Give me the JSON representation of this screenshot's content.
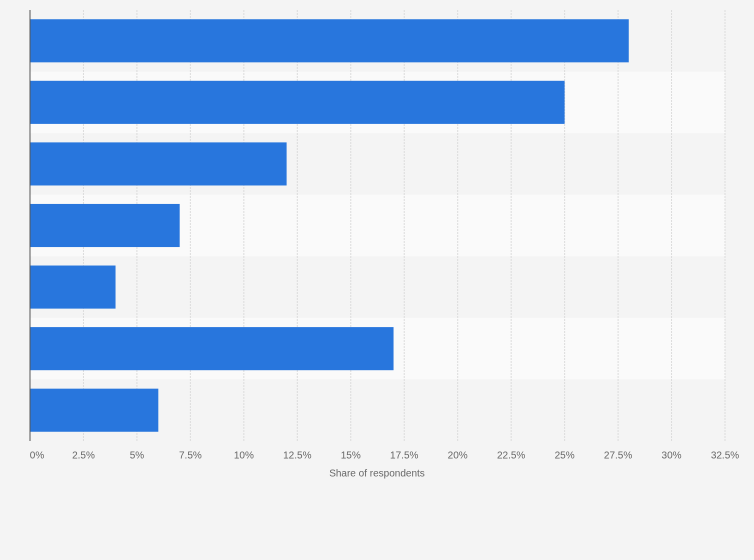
{
  "chart_data": {
    "type": "bar",
    "orientation": "horizontal",
    "x_label": "Share of respondents",
    "categories": [
      null,
      null,
      null,
      null,
      null,
      null,
      null
    ],
    "values": [
      28,
      25,
      12,
      7,
      4,
      17,
      6
    ],
    "color": "#2876dd",
    "xlim": [
      0,
      32.5
    ],
    "xticks": [
      {
        "value": 0,
        "label": "0%"
      },
      {
        "value": 2.5,
        "label": "2.5%"
      },
      {
        "value": 5,
        "label": "5%"
      },
      {
        "value": 7.5,
        "label": "7.5%"
      },
      {
        "value": 10,
        "label": "10%"
      },
      {
        "value": 12.5,
        "label": "12.5%"
      },
      {
        "value": 15,
        "label": "15%"
      },
      {
        "value": 17.5,
        "label": "17.5%"
      },
      {
        "value": 20,
        "label": "20%"
      },
      {
        "value": 22.5,
        "label": "22.5%"
      },
      {
        "value": 25,
        "label": "25%"
      },
      {
        "value": 27.5,
        "label": "27.5%"
      },
      {
        "value": 30,
        "label": "30%"
      },
      {
        "value": 32.5,
        "label": "32.5%"
      }
    ],
    "grid": true
  }
}
